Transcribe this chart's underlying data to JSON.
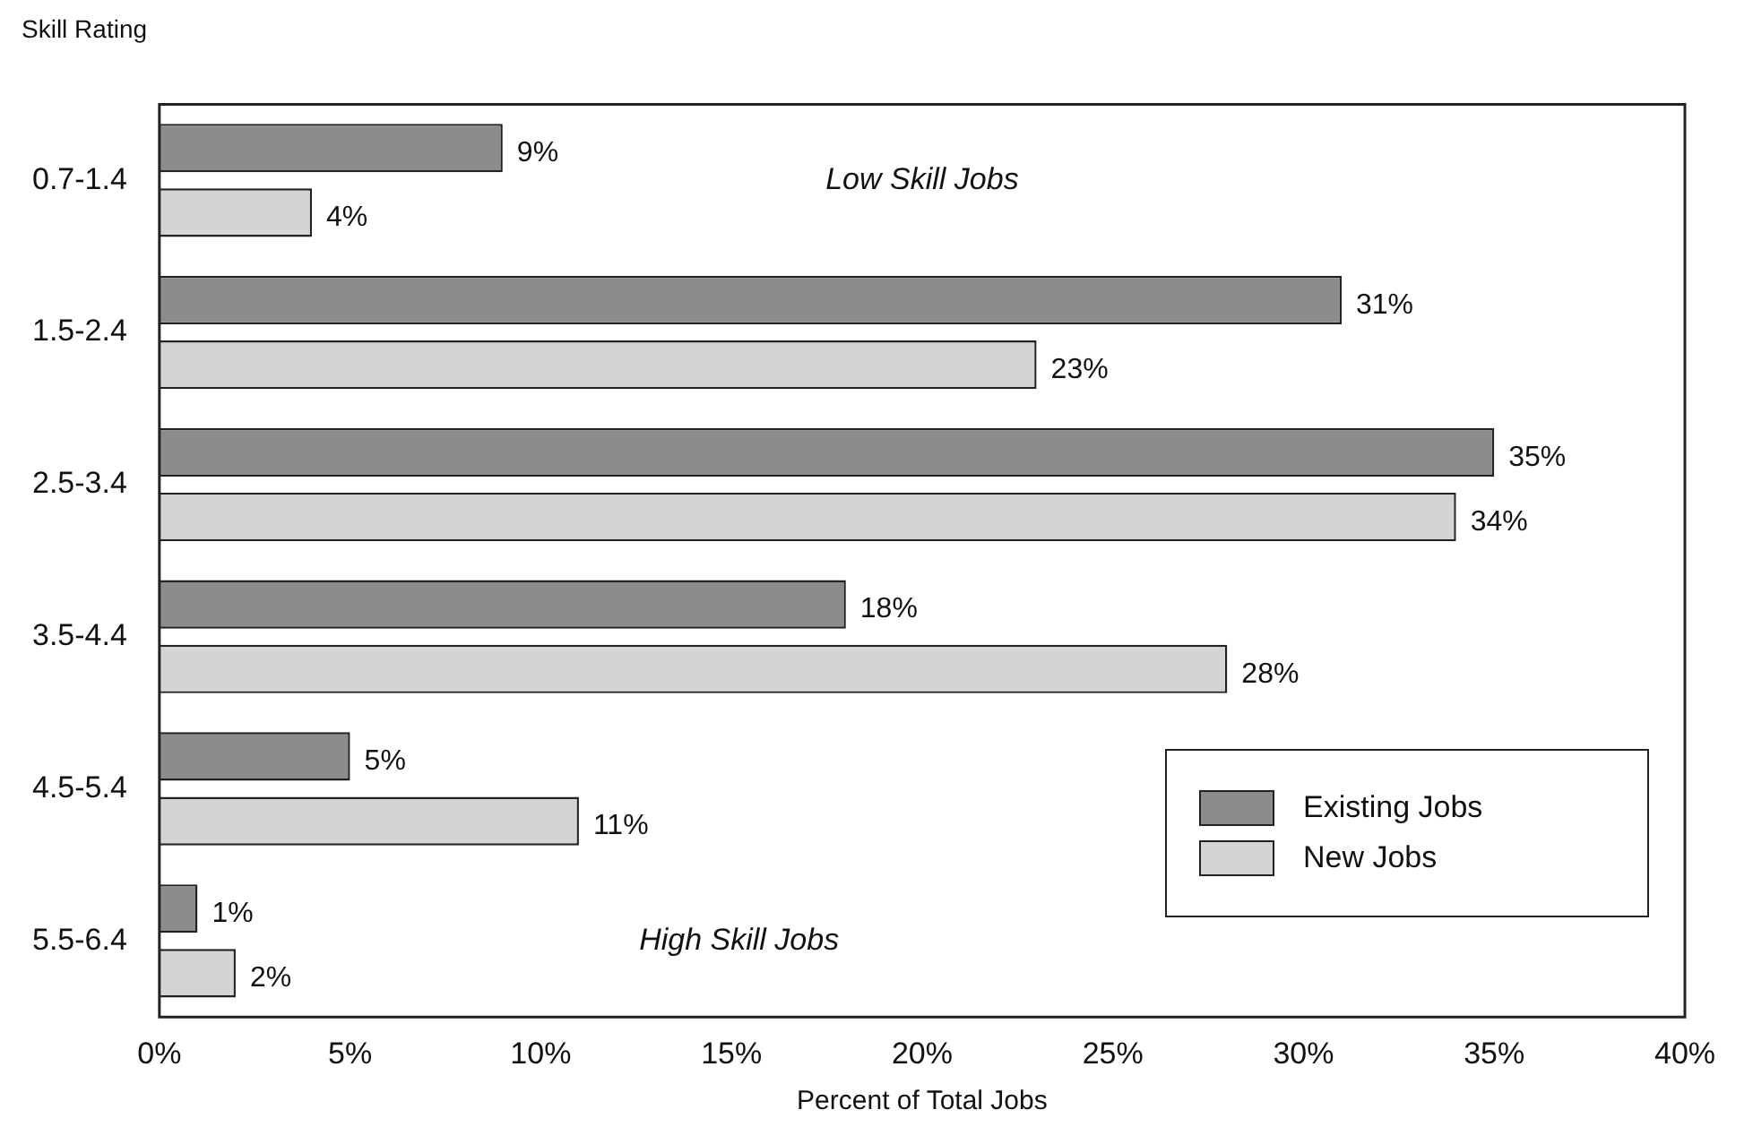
{
  "chart_data": {
    "type": "bar",
    "orientation": "horizontal",
    "ylabel": "Skill Rating",
    "xlabel": "Percent of Total Jobs",
    "categories": [
      "0.7-1.4",
      "1.5-2.4",
      "2.5-3.4",
      "3.5-4.4",
      "4.5-5.4",
      "5.5-6.4"
    ],
    "series": [
      {
        "name": "Existing Jobs",
        "color": "#8c8c8c",
        "values": [
          9,
          31,
          35,
          18,
          5,
          1
        ],
        "value_labels": [
          "9%",
          "31%",
          "35%",
          "18%",
          "5%",
          "1%"
        ]
      },
      {
        "name": "New Jobs",
        "color": "#d4d4d4",
        "values": [
          4,
          23,
          34,
          28,
          11,
          2
        ],
        "value_labels": [
          "4%",
          "23%",
          "34%",
          "28%",
          "11%",
          "2%"
        ]
      }
    ],
    "xlim": [
      0,
      40
    ],
    "xticks": [
      {
        "value": 0,
        "label": "0%"
      },
      {
        "value": 5,
        "label": "5%"
      },
      {
        "value": 10,
        "label": "10%"
      },
      {
        "value": 15,
        "label": "15%"
      },
      {
        "value": 20,
        "label": "20%"
      },
      {
        "value": 25,
        "label": "25%"
      },
      {
        "value": 30,
        "label": "30%"
      },
      {
        "value": 35,
        "label": "35%"
      },
      {
        "value": 40,
        "label": "40%"
      }
    ],
    "annotations": [
      "Low Skill Jobs",
      "High Skill Jobs"
    ],
    "legend": "bottom right",
    "grid": false
  }
}
